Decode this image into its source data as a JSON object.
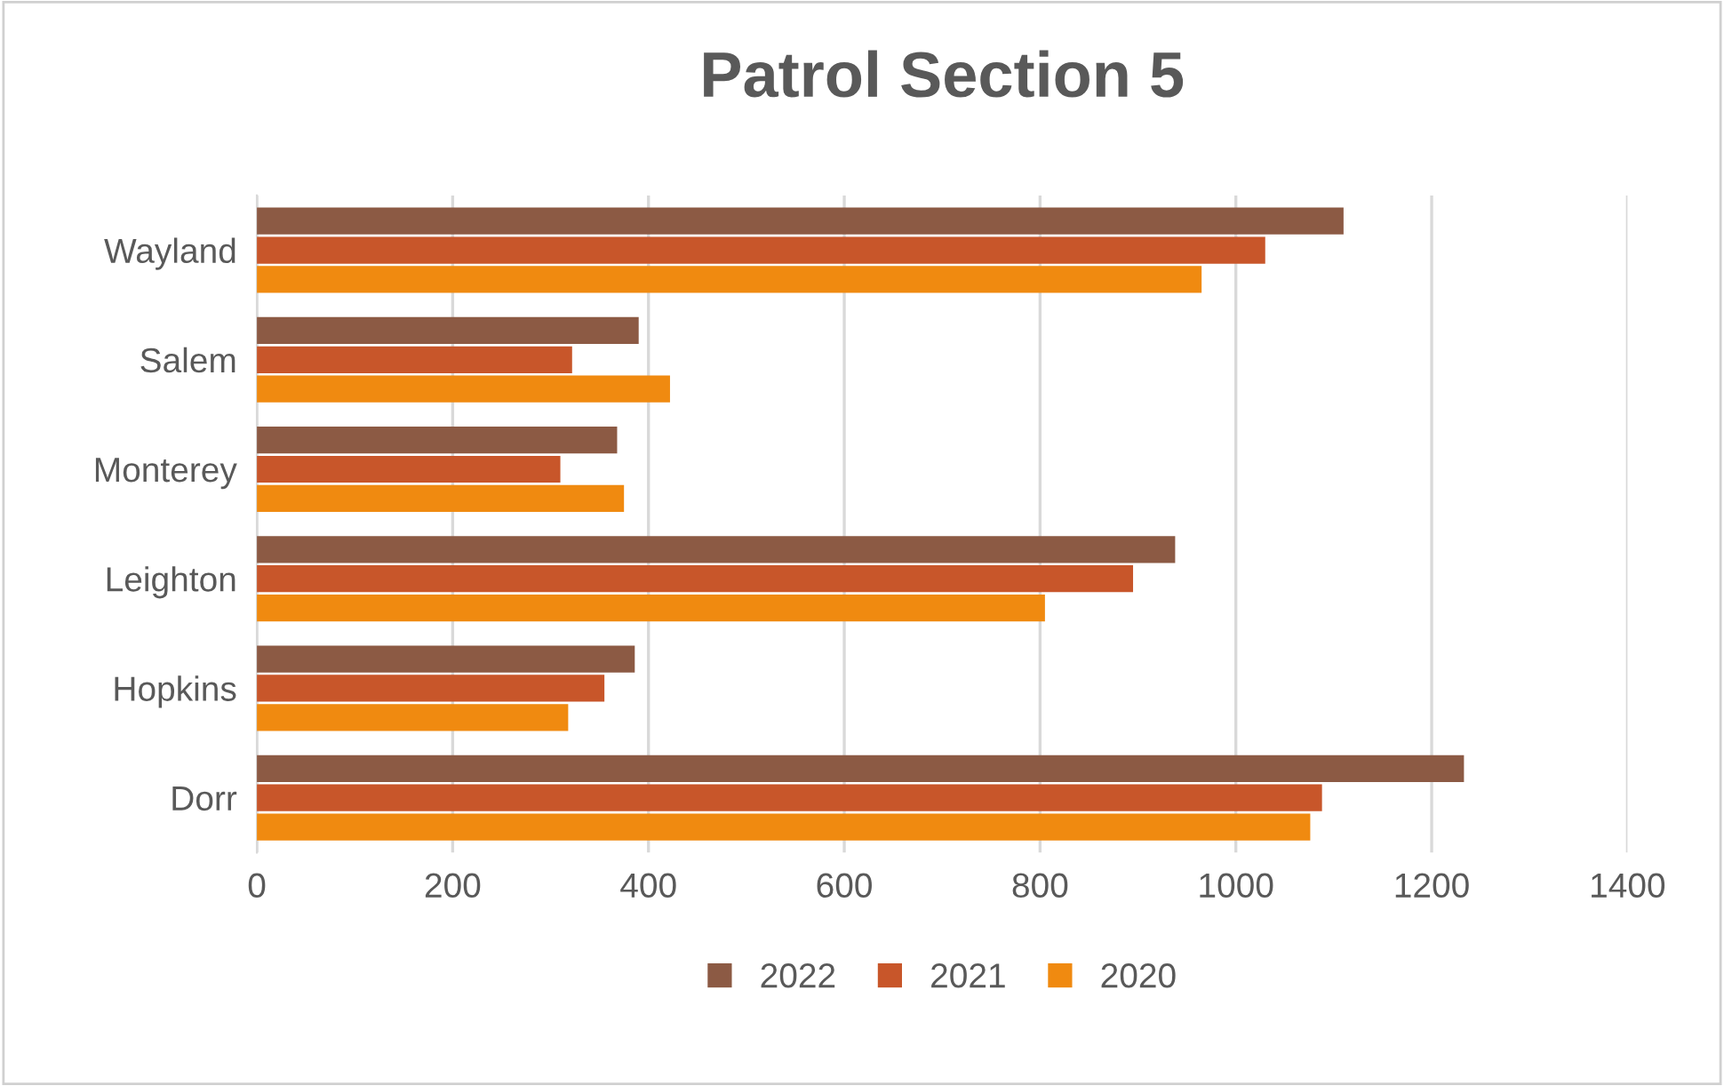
{
  "chart_data": {
    "type": "bar",
    "orientation": "horizontal",
    "title": "Patrol Section 5",
    "categories": [
      "Wayland",
      "Salem",
      "Monterey",
      "Leighton",
      "Hopkins",
      "Dorr"
    ],
    "series": [
      {
        "name": "2022",
        "color": "#8c5a44",
        "values": [
          1110,
          390,
          368,
          938,
          386,
          1233
        ]
      },
      {
        "name": "2021",
        "color": "#c8562a",
        "values": [
          1030,
          322,
          310,
          895,
          355,
          1088
        ]
      },
      {
        "name": "2020",
        "color": "#f08a10",
        "values": [
          965,
          422,
          375,
          805,
          318,
          1076
        ]
      }
    ],
    "xlim": [
      0,
      1400
    ],
    "xticks": [
      0,
      200,
      400,
      600,
      800,
      1000,
      1200,
      1400
    ],
    "grid": "x",
    "legend": "bottom"
  }
}
